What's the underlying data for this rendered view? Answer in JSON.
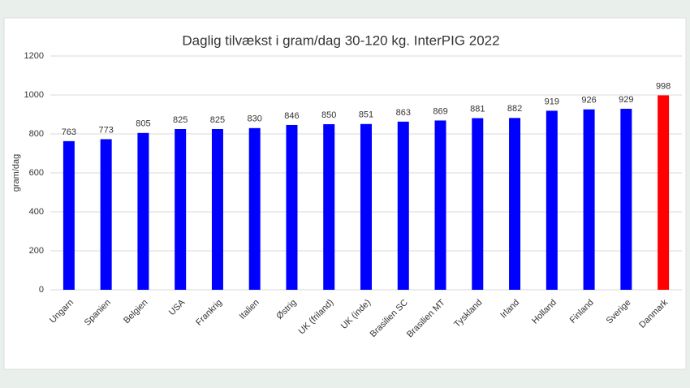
{
  "chart_data": {
    "type": "bar",
    "title": "Daglig tilvækst i gram/dag 30-120 kg. InterPIG 2022",
    "y_label": "gram/dag",
    "categories": [
      "Ungarn",
      "Spanien",
      "Belgien",
      "USA",
      "Frankrig",
      "Italien",
      "Østrig",
      "UK (friland)",
      "UK (inde)",
      "Brasilien SC",
      "Brasilien MT",
      "Tyskland",
      "Irland",
      "Holland",
      "Finland",
      "Sverige",
      "Danmark"
    ],
    "values": [
      763,
      773,
      805,
      825,
      825,
      830,
      846,
      850,
      851,
      863,
      869,
      881,
      882,
      919,
      926,
      929,
      998
    ],
    "colors": [
      "#0000ff",
      "#0000ff",
      "#0000ff",
      "#0000ff",
      "#0000ff",
      "#0000ff",
      "#0000ff",
      "#0000ff",
      "#0000ff",
      "#0000ff",
      "#0000ff",
      "#0000ff",
      "#0000ff",
      "#0000ff",
      "#0000ff",
      "#0000ff",
      "#ff0000"
    ],
    "ylim": [
      0,
      1200
    ],
    "yticks": [
      0,
      200,
      400,
      600,
      800,
      1000,
      1200
    ],
    "grid": true
  }
}
